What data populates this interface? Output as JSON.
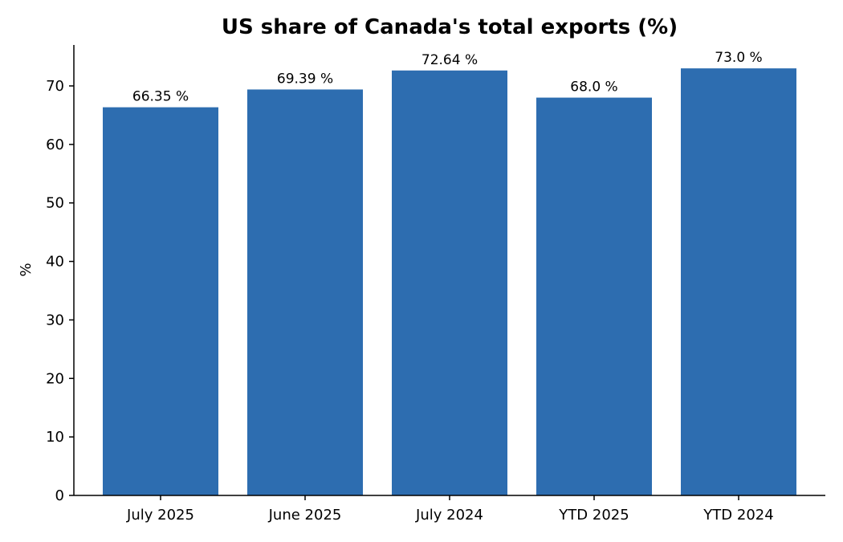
{
  "chart_data": {
    "type": "bar",
    "title": "US share of Canada's total exports (%)",
    "xlabel": "",
    "ylabel": "%",
    "categories": [
      "July 2025",
      "June 2025",
      "July 2024",
      "YTD 2025",
      "YTD 2024"
    ],
    "values": [
      66.35,
      69.39,
      72.64,
      68.0,
      73.0
    ],
    "value_labels": [
      "66.35 %",
      "69.39 %",
      "72.64 %",
      "68.0 %",
      "73.0 %"
    ],
    "ylim": [
      0,
      77
    ],
    "yticks": [
      0,
      10,
      20,
      30,
      40,
      50,
      60,
      70
    ],
    "ytick_labels": [
      "0",
      "10",
      "20",
      "30",
      "40",
      "50",
      "60",
      "70"
    ],
    "grid": false,
    "legend": "none",
    "bar_color": "#2d6db0"
  }
}
